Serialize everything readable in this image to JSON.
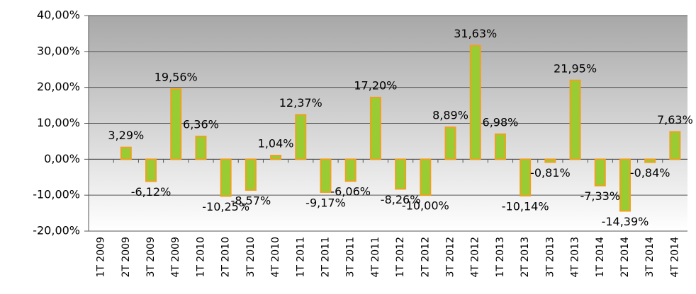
{
  "chart_data": {
    "type": "bar",
    "categories": [
      "1T 2009",
      "2T 2009",
      "3T 2009",
      "4T 2009",
      "1T 2010",
      "2T 2010",
      "3T 2010",
      "4T 2010",
      "1T 2011",
      "2T 2011",
      "3T 2011",
      "4T 2011",
      "1T 2012",
      "2T 2012",
      "3T 2012",
      "4T 2012",
      "1T 2013",
      "2T 2013",
      "3T 2013",
      "4T 2013",
      "1T 2014",
      "2T 2014",
      "3T 2014",
      "4T 2014"
    ],
    "values": [
      null,
      3.29,
      -6.12,
      19.56,
      6.36,
      -10.25,
      -8.57,
      1.04,
      12.37,
      -9.17,
      -6.06,
      17.2,
      -8.26,
      -10.0,
      8.89,
      31.63,
      6.98,
      -10.14,
      -0.81,
      21.95,
      -7.33,
      -14.39,
      -0.84,
      7.63
    ],
    "value_labels": [
      null,
      "3,29%",
      "-6,12%",
      "19,56%",
      "6,36%",
      "-10,25%",
      "-8,57%",
      "1,04%",
      "12,37%",
      "-9,17%",
      "-6,06%",
      "17,20%",
      "-8,26%",
      "-10,00%",
      "8,89%",
      "31,63%",
      "6,98%",
      "-10,14%",
      "-0,81%",
      "21,95%",
      "-7,33%",
      "-14,39%",
      "-0,84%",
      "7,63%"
    ],
    "color": "#99cc33",
    "edge_color": "#f0a020",
    "ylim": [
      -20,
      40
    ],
    "yticks": [
      {
        "value": -20,
        "label": "-20,00%"
      },
      {
        "value": -10,
        "label": "-10,00%"
      },
      {
        "value": 0,
        "label": "0,00%"
      },
      {
        "value": 10,
        "label": "10,00%"
      },
      {
        "value": 20,
        "label": "20,00%"
      },
      {
        "value": 30,
        "label": "30,00%"
      },
      {
        "value": 40,
        "label": "40,00%"
      }
    ],
    "grid": true
  }
}
